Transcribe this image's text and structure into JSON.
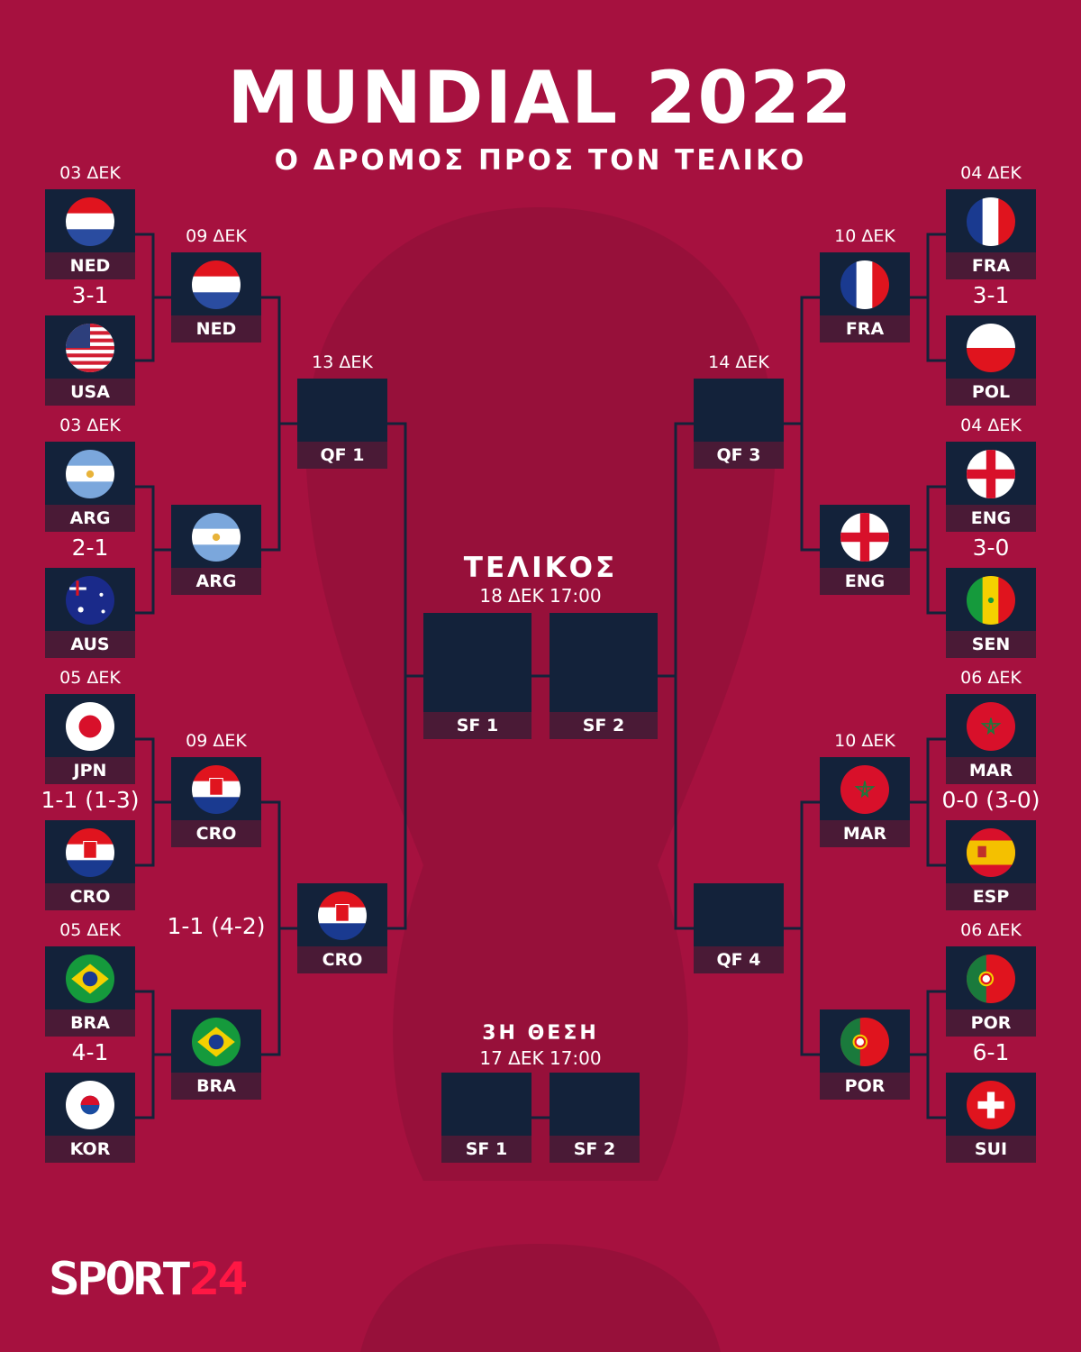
{
  "header": {
    "title": "MUNDIAL 2022",
    "subtitle": "Ο ΔΡΟΜΟΣ ΠΡΟΣ ΤΟΝ ΤΕΛΙΚΟ"
  },
  "colors": {
    "background": "#a6113f",
    "box": "#13223a",
    "label_strip": "#4a1a36",
    "logo_accent": "#ff1744"
  },
  "final": {
    "title": "ΤΕΛΙΚΟΣ",
    "datetime": "18 ΔΕΚ 17:00",
    "slots": [
      "SF 1",
      "SF 2"
    ]
  },
  "third_place": {
    "title": "3Η ΘΕΣΗ",
    "datetime": "17 ΔΕΚ 17:00",
    "slots": [
      "SF 1",
      "SF 2"
    ]
  },
  "round16": [
    {
      "date": "03 ΔΕΚ",
      "home": "NED",
      "away": "USA",
      "score": "3-1",
      "side": "left",
      "pos": 0
    },
    {
      "date": "03 ΔΕΚ",
      "home": "ARG",
      "away": "AUS",
      "score": "2-1",
      "side": "left",
      "pos": 1
    },
    {
      "date": "05 ΔΕΚ",
      "home": "JPN",
      "away": "CRO",
      "score": "1-1 (1-3)",
      "side": "left",
      "pos": 2
    },
    {
      "date": "05 ΔΕΚ",
      "home": "BRA",
      "away": "KOR",
      "score": "4-1",
      "side": "left",
      "pos": 3
    },
    {
      "date": "04 ΔΕΚ",
      "home": "FRA",
      "away": "POL",
      "score": "3-1",
      "side": "right",
      "pos": 0
    },
    {
      "date": "04 ΔΕΚ",
      "home": "ENG",
      "away": "SEN",
      "score": "3-0",
      "side": "right",
      "pos": 1
    },
    {
      "date": "06 ΔΕΚ",
      "home": "MAR",
      "away": "ESP",
      "score": "0-0 (3-0)",
      "side": "right",
      "pos": 2
    },
    {
      "date": "06 ΔΕΚ",
      "home": "POR",
      "away": "SUI",
      "score": "6-1",
      "side": "right",
      "pos": 3
    }
  ],
  "quarterfinals": [
    {
      "date": "09 ΔΕΚ",
      "home": "NED",
      "away": "ARG",
      "score": "",
      "side": "left",
      "pos": 0
    },
    {
      "date": "09 ΔΕΚ",
      "home": "CRO",
      "away": "BRA",
      "score": "1-1 (4-2)",
      "side": "left",
      "pos": 1
    },
    {
      "date": "10 ΔΕΚ",
      "home": "FRA",
      "away": "ENG",
      "score": "",
      "side": "right",
      "pos": 0
    },
    {
      "date": "10 ΔΕΚ",
      "home": "MAR",
      "away": "POR",
      "score": "",
      "side": "right",
      "pos": 1
    }
  ],
  "semifinals": [
    {
      "date": "13 ΔΕΚ",
      "home": "QF 1",
      "away": "CRO",
      "side": "left"
    },
    {
      "date": "14 ΔΕΚ",
      "home": "QF 3",
      "away": "QF 4",
      "side": "right"
    }
  ],
  "logo": {
    "text_main": "SPORT",
    "text_accent": "24"
  }
}
